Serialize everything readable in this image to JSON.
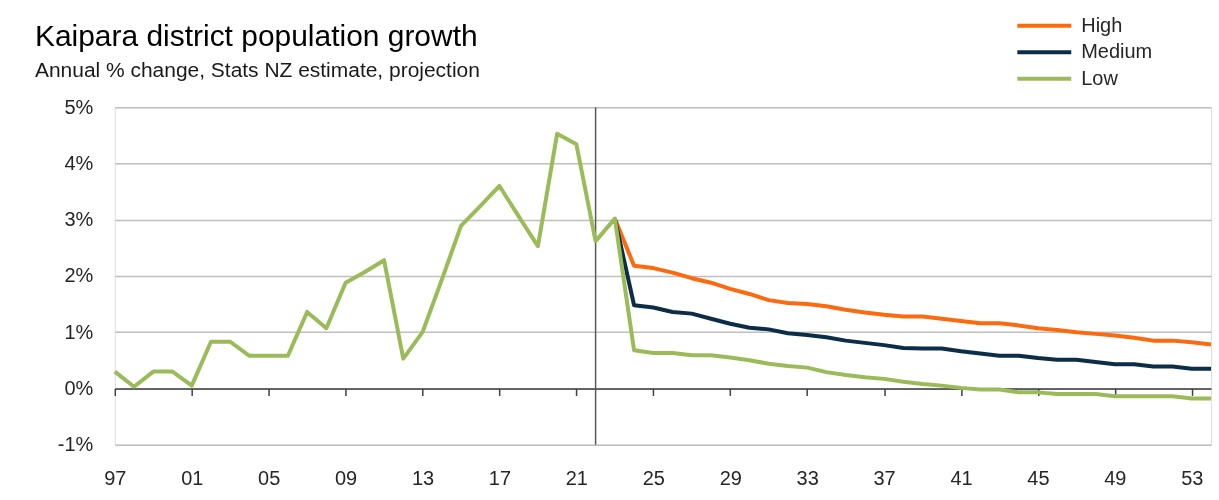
{
  "chart_data": {
    "type": "line",
    "title": "Kaipara district population growth",
    "subtitle": "Annual % change, Stats NZ estimate, projection",
    "x": [
      1997,
      1998,
      1999,
      2000,
      2001,
      2002,
      2003,
      2004,
      2005,
      2006,
      2007,
      2008,
      2009,
      2010,
      2011,
      2012,
      2013,
      2014,
      2015,
      2016,
      2017,
      2018,
      2019,
      2020,
      2021,
      2022,
      2023,
      2024,
      2025,
      2026,
      2027,
      2028,
      2029,
      2030,
      2031,
      2032,
      2033,
      2034,
      2035,
      2036,
      2037,
      2038,
      2039,
      2040,
      2041,
      2042,
      2043,
      2044,
      2045,
      2046,
      2047,
      2048,
      2049,
      2050,
      2051,
      2052,
      2053,
      2054
    ],
    "series": [
      {
        "name": "High",
        "color": "#fc6a0f",
        "values": [
          null,
          null,
          null,
          null,
          null,
          null,
          null,
          null,
          null,
          null,
          null,
          null,
          null,
          null,
          null,
          null,
          null,
          null,
          null,
          null,
          null,
          null,
          null,
          null,
          null,
          null,
          3.02,
          2.18,
          2.14,
          2.06,
          1.96,
          1.88,
          1.77,
          1.68,
          1.57,
          1.52,
          1.5,
          1.46,
          1.4,
          1.35,
          1.31,
          1.28,
          1.28,
          1.24,
          1.2,
          1.16,
          1.16,
          1.12,
          1.07,
          1.04,
          1.0,
          0.97,
          0.94,
          0.9,
          0.85,
          0.85,
          0.82,
          0.78
        ]
      },
      {
        "name": "Medium",
        "color": "#0c2d48",
        "values": [
          null,
          null,
          null,
          null,
          null,
          null,
          null,
          null,
          null,
          null,
          null,
          null,
          null,
          null,
          null,
          null,
          null,
          null,
          null,
          null,
          null,
          null,
          null,
          null,
          null,
          null,
          3.02,
          1.48,
          1.44,
          1.36,
          1.33,
          1.24,
          1.15,
          1.08,
          1.05,
          0.98,
          0.95,
          0.91,
          0.85,
          0.81,
          0.77,
          0.72,
          0.71,
          0.71,
          0.66,
          0.62,
          0.58,
          0.58,
          0.54,
          0.51,
          0.51,
          0.47,
          0.43,
          0.43,
          0.39,
          0.39,
          0.35,
          0.35
        ]
      },
      {
        "name": "Low",
        "color": "#9bbb59",
        "values": [
          0.3,
          0.03,
          0.3,
          0.3,
          0.05,
          0.83,
          0.83,
          0.58,
          0.58,
          0.58,
          1.36,
          1.07,
          1.88,
          2.07,
          2.28,
          0.53,
          1.0,
          1.93,
          2.89,
          3.24,
          3.6,
          3.06,
          2.53,
          4.53,
          4.34,
          2.62,
          3.02,
          0.68,
          0.63,
          0.63,
          0.59,
          0.59,
          0.55,
          0.5,
          0.44,
          0.4,
          0.37,
          0.29,
          0.24,
          0.2,
          0.17,
          0.12,
          0.08,
          0.05,
          0.01,
          -0.02,
          -0.02,
          -0.07,
          -0.07,
          -0.1,
          -0.1,
          -0.1,
          -0.14,
          -0.14,
          -0.14,
          -0.14,
          -0.18,
          -0.18
        ]
      }
    ],
    "xlim": [
      1997,
      2054
    ],
    "xticks": [
      {
        "value": 1997,
        "label": "97"
      },
      {
        "value": 2001,
        "label": "01"
      },
      {
        "value": 2005,
        "label": "05"
      },
      {
        "value": 2009,
        "label": "09"
      },
      {
        "value": 2013,
        "label": "13"
      },
      {
        "value": 2017,
        "label": "17"
      },
      {
        "value": 2021,
        "label": "21"
      },
      {
        "value": 2025,
        "label": "25"
      },
      {
        "value": 2029,
        "label": "29"
      },
      {
        "value": 2033,
        "label": "33"
      },
      {
        "value": 2037,
        "label": "37"
      },
      {
        "value": 2041,
        "label": "41"
      },
      {
        "value": 2045,
        "label": "45"
      },
      {
        "value": 2049,
        "label": "49"
      },
      {
        "value": 2053,
        "label": "53"
      }
    ],
    "ylim": [
      -1,
      5
    ],
    "yticks": [
      {
        "value": -1,
        "label": "-1%"
      },
      {
        "value": 0,
        "label": "0%"
      },
      {
        "value": 1,
        "label": "1%"
      },
      {
        "value": 2,
        "label": "2%"
      },
      {
        "value": 3,
        "label": "3%"
      },
      {
        "value": 4,
        "label": "4%"
      },
      {
        "value": 5,
        "label": "5%"
      }
    ],
    "ref_lines": [
      {
        "axis": "x",
        "value": 2022,
        "color": "#595959"
      }
    ],
    "grid": "y",
    "legend": "top right"
  }
}
